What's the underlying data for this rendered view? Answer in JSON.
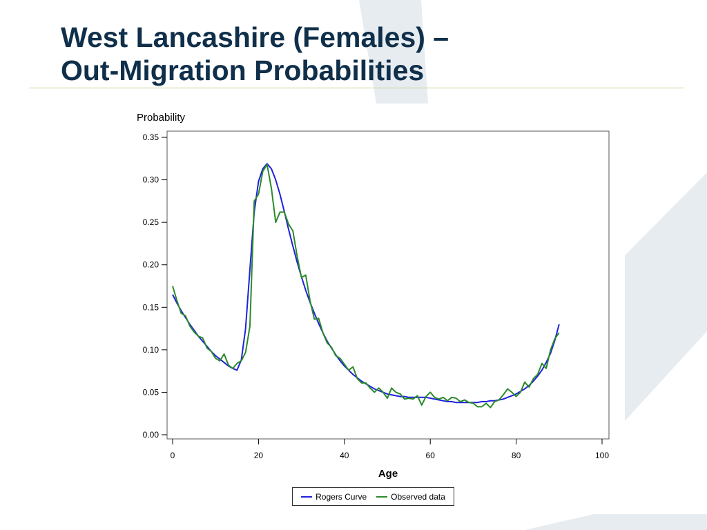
{
  "slide": {
    "title_line1": "West Lancashire (Females) –",
    "title_line2": "Out-Migration Probabilities"
  },
  "colors": {
    "title": "#0f2f4a",
    "rule": "#c4d48a",
    "watermark": "#e7ecf1"
  },
  "chart_data": {
    "type": "line",
    "title": "",
    "xlabel": "Age",
    "ylabel": "Probability",
    "xlim": [
      0,
      100
    ],
    "ylim": [
      0,
      0.35
    ],
    "x_ticks": [
      0,
      20,
      40,
      60,
      80,
      100
    ],
    "y_ticks": [
      0.0,
      0.05,
      0.1,
      0.15,
      0.2,
      0.25,
      0.3,
      0.35
    ],
    "y_tick_labels": [
      "0.00",
      "0.05",
      "0.10",
      "0.15",
      "0.20",
      "0.25",
      "0.30",
      "0.35"
    ],
    "grid": false,
    "legend_position": "bottom",
    "series": [
      {
        "name": "Rogers Curve",
        "color": "#2020e0",
        "x": [
          0,
          1,
          2,
          3,
          4,
          5,
          6,
          7,
          8,
          9,
          10,
          11,
          12,
          13,
          14,
          15,
          16,
          17,
          18,
          19,
          20,
          21,
          22,
          23,
          24,
          25,
          26,
          27,
          28,
          29,
          30,
          31,
          32,
          33,
          34,
          35,
          36,
          37,
          38,
          39,
          40,
          41,
          42,
          43,
          44,
          45,
          46,
          47,
          48,
          49,
          50,
          51,
          52,
          53,
          54,
          55,
          56,
          57,
          58,
          59,
          60,
          61,
          62,
          63,
          64,
          65,
          66,
          67,
          68,
          69,
          70,
          71,
          72,
          73,
          74,
          75,
          76,
          77,
          78,
          79,
          80,
          81,
          82,
          83,
          84,
          85,
          86,
          87,
          88,
          89,
          90
        ],
        "y": [
          0.165,
          0.155,
          0.146,
          0.138,
          0.13,
          0.123,
          0.116,
          0.11,
          0.104,
          0.098,
          0.093,
          0.089,
          0.085,
          0.081,
          0.078,
          0.076,
          0.088,
          0.125,
          0.195,
          0.262,
          0.298,
          0.313,
          0.319,
          0.313,
          0.3,
          0.283,
          0.263,
          0.242,
          0.222,
          0.203,
          0.186,
          0.17,
          0.156,
          0.143,
          0.131,
          0.12,
          0.11,
          0.102,
          0.094,
          0.087,
          0.081,
          0.076,
          0.071,
          0.067,
          0.063,
          0.06,
          0.057,
          0.054,
          0.052,
          0.05,
          0.048,
          0.047,
          0.046,
          0.045,
          0.045,
          0.044,
          0.044,
          0.044,
          0.044,
          0.044,
          0.043,
          0.042,
          0.041,
          0.04,
          0.039,
          0.039,
          0.038,
          0.038,
          0.038,
          0.038,
          0.038,
          0.038,
          0.039,
          0.039,
          0.04,
          0.04,
          0.041,
          0.042,
          0.044,
          0.046,
          0.048,
          0.051,
          0.054,
          0.058,
          0.063,
          0.069,
          0.076,
          0.085,
          0.096,
          0.111,
          0.13
        ]
      },
      {
        "name": "Observed data",
        "color": "#2a8a2a",
        "x": [
          0,
          1,
          2,
          3,
          4,
          5,
          6,
          7,
          8,
          9,
          10,
          11,
          12,
          13,
          14,
          15,
          16,
          17,
          18,
          19,
          20,
          21,
          22,
          23,
          24,
          25,
          26,
          27,
          28,
          29,
          30,
          31,
          32,
          33,
          34,
          35,
          36,
          37,
          38,
          39,
          40,
          41,
          42,
          43,
          44,
          45,
          46,
          47,
          48,
          49,
          50,
          51,
          52,
          53,
          54,
          55,
          56,
          57,
          58,
          59,
          60,
          61,
          62,
          63,
          64,
          65,
          66,
          67,
          68,
          69,
          70,
          71,
          72,
          73,
          74,
          75,
          76,
          77,
          78,
          79,
          80,
          81,
          82,
          83,
          84,
          85,
          86,
          87,
          88,
          89,
          90
        ],
        "y": [
          0.175,
          0.158,
          0.143,
          0.14,
          0.128,
          0.121,
          0.116,
          0.114,
          0.102,
          0.098,
          0.09,
          0.087,
          0.095,
          0.082,
          0.078,
          0.084,
          0.087,
          0.097,
          0.128,
          0.275,
          0.283,
          0.31,
          0.318,
          0.29,
          0.25,
          0.262,
          0.262,
          0.248,
          0.24,
          0.21,
          0.185,
          0.188,
          0.158,
          0.136,
          0.137,
          0.12,
          0.108,
          0.103,
          0.093,
          0.09,
          0.083,
          0.076,
          0.08,
          0.066,
          0.061,
          0.061,
          0.055,
          0.05,
          0.055,
          0.05,
          0.043,
          0.055,
          0.05,
          0.048,
          0.042,
          0.043,
          0.042,
          0.046,
          0.035,
          0.045,
          0.05,
          0.044,
          0.042,
          0.044,
          0.04,
          0.044,
          0.043,
          0.039,
          0.041,
          0.038,
          0.037,
          0.033,
          0.033,
          0.037,
          0.032,
          0.039,
          0.041,
          0.047,
          0.054,
          0.05,
          0.045,
          0.05,
          0.062,
          0.056,
          0.066,
          0.071,
          0.084,
          0.078,
          0.1,
          0.113,
          0.12
        ]
      }
    ]
  }
}
